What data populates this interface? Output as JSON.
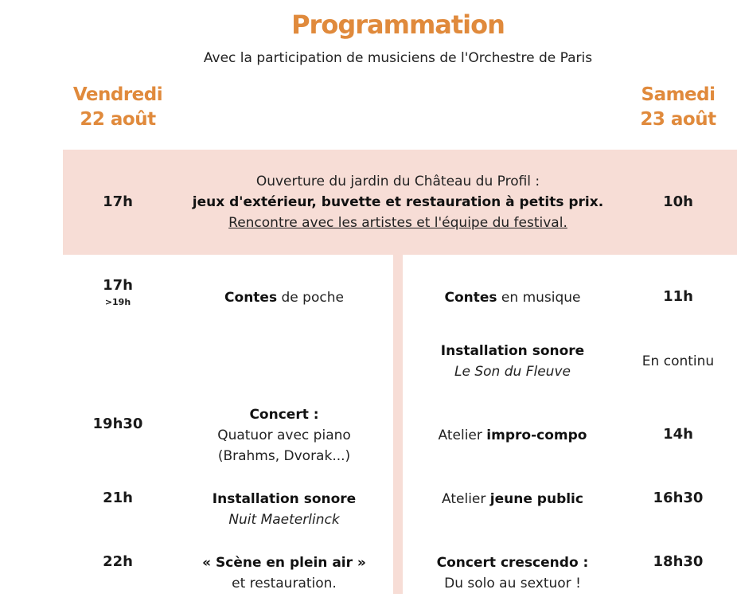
{
  "header": {
    "title": "Programmation",
    "subtitle": "Avec la participation de musiciens de l'Orchestre de Paris"
  },
  "days": {
    "friday": {
      "line1": "Vendredi",
      "line2": "22 août"
    },
    "saturday": {
      "line1": "Samedi",
      "line2": "23 août"
    }
  },
  "opening": {
    "time_friday": "17h",
    "time_saturday": "10h",
    "line1": "Ouverture du jardin du Château du Profil :",
    "line2": "jeux d'extérieur, buvette et restauration à petits prix.",
    "line3": "Rencontre avec les artistes et l'équipe du festival."
  },
  "friday_events": [
    {
      "time": "17h",
      "time_sub": ">19h",
      "bold": "Contes",
      "rest": " de poche"
    },
    {
      "time": "19h30",
      "bold": "Concert :",
      "line2": "Quatuor avec piano",
      "line3": "(Brahms, Dvorak...)"
    },
    {
      "time": "21h",
      "bold": "Installation sonore",
      "italic": "Nuit Maeterlinck"
    },
    {
      "time": "22h",
      "bold": "« Scène en plein air »",
      "line2": "et restauration."
    }
  ],
  "saturday_events": [
    {
      "time": "11h",
      "bold": "Contes",
      "rest": " en musique"
    },
    {
      "time": "En continu",
      "bold": "Installation sonore",
      "italic": "Le Son du Fleuve"
    },
    {
      "time": "14h",
      "prefix": "Atelier ",
      "bold": "impro-compo"
    },
    {
      "time": "16h30",
      "prefix": "Atelier ",
      "bold": "jeune public"
    },
    {
      "time": "18h30",
      "bold": "Concert crescendo :",
      "line2": "Du solo au sextuor !"
    }
  ]
}
